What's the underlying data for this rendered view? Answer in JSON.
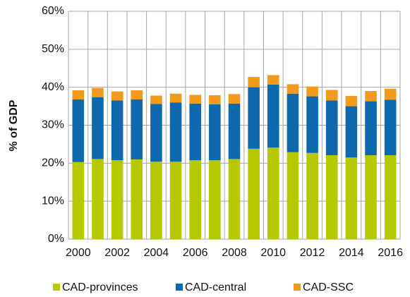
{
  "chart_data": {
    "type": "stacked_bar",
    "y_label": "% of GDP",
    "categories": [
      "2000",
      null,
      "2002",
      null,
      "2004",
      null,
      "2006",
      null,
      "2008",
      null,
      "2010",
      null,
      "2012",
      null,
      "2014",
      null,
      "2016"
    ],
    "series": [
      {
        "name": "CAD-provinces",
        "color": "#b5c800",
        "values": [
          20.3,
          21.1,
          20.8,
          21.0,
          20.4,
          20.4,
          20.8,
          20.8,
          21.1,
          23.8,
          24.1,
          22.9,
          22.7,
          22.1,
          21.5,
          22.1,
          22.1
        ]
      },
      {
        "name": "CAD-central",
        "color": "#0e68ae",
        "values": [
          16.5,
          16.3,
          15.7,
          15.8,
          15.2,
          15.6,
          14.9,
          14.7,
          14.6,
          16.2,
          16.6,
          15.4,
          14.9,
          14.4,
          13.5,
          14.2,
          14.6
        ]
      },
      {
        "name": "CAD-SSC",
        "color": "#f39a1c",
        "values": [
          2.4,
          2.4,
          2.4,
          2.4,
          2.2,
          2.3,
          2.3,
          2.4,
          2.5,
          2.7,
          2.5,
          2.5,
          2.6,
          2.8,
          2.7,
          2.7,
          2.9
        ]
      }
    ],
    "ylim": [
      0,
      60
    ],
    "yticks": [
      {
        "value": 0,
        "label": "0%"
      },
      {
        "value": 10,
        "label": "10%"
      },
      {
        "value": 20,
        "label": "20%"
      },
      {
        "value": 30,
        "label": "30%"
      },
      {
        "value": 40,
        "label": "40%"
      },
      {
        "value": 50,
        "label": "50%"
      },
      {
        "value": 60,
        "label": "60%"
      }
    ],
    "grid": true,
    "legend": "bottom"
  }
}
